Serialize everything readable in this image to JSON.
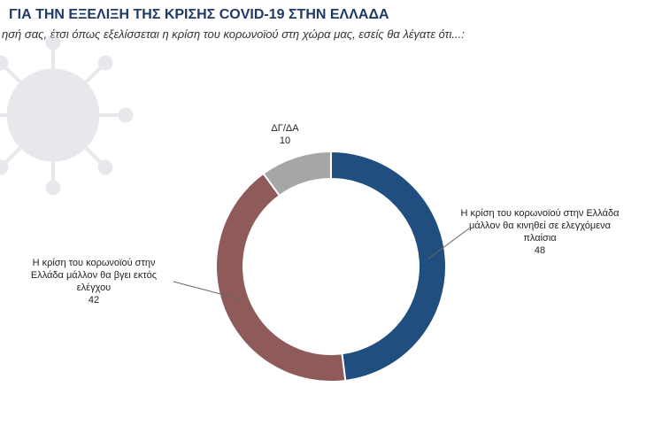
{
  "header": {
    "title": "ΓΙΑ ΤΗΝ ΕΞΕΛΙΞΗ ΤΗΣ ΚΡΙΣΗΣ COVID-19 ΣΤΗΝ ΕΛΛΑΔΑ",
    "subtitle": "ησή σας, έτσι όπως εξελίσσεται η κρίση του κορωνοϊού στη χώρα μας, εσείς θα λέγατε ότι...:"
  },
  "decoration": {
    "icon": "virus-icon",
    "color": "#c9ced6"
  },
  "chart_data": {
    "type": "pie",
    "donut": true,
    "title": "",
    "slices": [
      {
        "label": "Η κρίση του κορωνοϊού στην Ελλάδα μάλλον θα κινηθεί σε ελεγχόμενα πλαίσια",
        "value": 48,
        "color": "#1f4e7f"
      },
      {
        "label": "Η κρίση του κορωνοϊού στην Ελλάδα μάλλον θα βγει εκτός ελέγχου",
        "value": 42,
        "color": "#8f5a5a"
      },
      {
        "label": "ΔΓ/ΔΑ",
        "value": 10,
        "color": "#a6a6a6"
      }
    ]
  }
}
